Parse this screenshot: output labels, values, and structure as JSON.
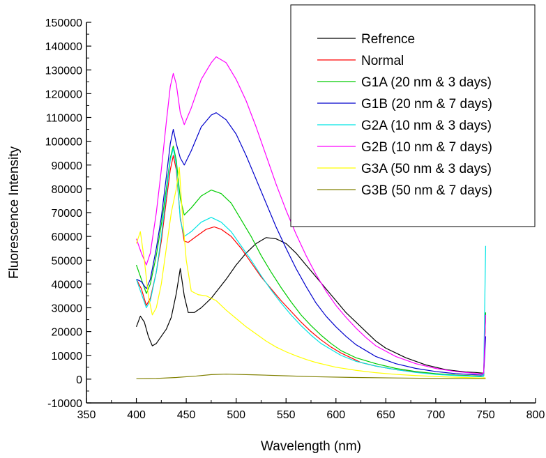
{
  "chart_data": {
    "type": "line",
    "xlabel": "Wavelength (nm)",
    "ylabel": "Fluorescence Intensity",
    "xlim": [
      350,
      800
    ],
    "ylim": [
      -10000,
      150000
    ],
    "x_ticks": [
      350,
      400,
      450,
      500,
      550,
      600,
      650,
      700,
      750,
      800
    ],
    "y_ticks": [
      -10000,
      0,
      10000,
      20000,
      30000,
      40000,
      50000,
      60000,
      70000,
      80000,
      90000,
      100000,
      110000,
      120000,
      130000,
      140000,
      150000
    ],
    "legend_position": "top-right",
    "grid": false,
    "series": [
      {
        "name": "Refrence",
        "color": "#000000",
        "points": [
          [
            400,
            22000
          ],
          [
            404,
            26500
          ],
          [
            408,
            24000
          ],
          [
            412,
            18000
          ],
          [
            416,
            14000
          ],
          [
            420,
            15000
          ],
          [
            425,
            18000
          ],
          [
            430,
            21000
          ],
          [
            435,
            26000
          ],
          [
            440,
            36000
          ],
          [
            444,
            46500
          ],
          [
            448,
            35000
          ],
          [
            452,
            28000
          ],
          [
            458,
            28000
          ],
          [
            465,
            30000
          ],
          [
            475,
            34000
          ],
          [
            490,
            42000
          ],
          [
            500,
            48000
          ],
          [
            510,
            53000
          ],
          [
            520,
            57000
          ],
          [
            530,
            59500
          ],
          [
            540,
            59000
          ],
          [
            550,
            57000
          ],
          [
            560,
            53000
          ],
          [
            570,
            48000
          ],
          [
            580,
            43000
          ],
          [
            590,
            38000
          ],
          [
            600,
            33000
          ],
          [
            610,
            28000
          ],
          [
            620,
            24000
          ],
          [
            630,
            20000
          ],
          [
            640,
            16000
          ],
          [
            650,
            13000
          ],
          [
            660,
            11000
          ],
          [
            670,
            9000
          ],
          [
            680,
            7500
          ],
          [
            690,
            6000
          ],
          [
            700,
            5000
          ],
          [
            710,
            4000
          ],
          [
            720,
            3500
          ],
          [
            730,
            3000
          ],
          [
            740,
            2800
          ],
          [
            748,
            2500
          ],
          [
            750,
            28000
          ]
        ]
      },
      {
        "name": "Normal",
        "color": "#ff0000",
        "points": [
          [
            400,
            42000
          ],
          [
            405,
            38000
          ],
          [
            410,
            31000
          ],
          [
            414,
            34000
          ],
          [
            420,
            45000
          ],
          [
            425,
            58000
          ],
          [
            430,
            75000
          ],
          [
            434,
            88000
          ],
          [
            437,
            94000
          ],
          [
            440,
            88000
          ],
          [
            444,
            68000
          ],
          [
            448,
            58000
          ],
          [
            452,
            57500
          ],
          [
            460,
            60000
          ],
          [
            470,
            63000
          ],
          [
            478,
            64000
          ],
          [
            485,
            63000
          ],
          [
            495,
            60000
          ],
          [
            505,
            55000
          ],
          [
            515,
            49000
          ],
          [
            525,
            43000
          ],
          [
            535,
            38000
          ],
          [
            545,
            33000
          ],
          [
            555,
            28500
          ],
          [
            565,
            24000
          ],
          [
            575,
            20000
          ],
          [
            585,
            16500
          ],
          [
            595,
            13500
          ],
          [
            605,
            11000
          ],
          [
            615,
            9000
          ],
          [
            625,
            7000
          ],
          [
            640,
            5500
          ],
          [
            660,
            4000
          ],
          [
            680,
            3000
          ],
          [
            700,
            2200
          ],
          [
            720,
            1700
          ],
          [
            745,
            1200
          ],
          [
            748,
            1200
          ],
          [
            750,
            27000
          ]
        ]
      },
      {
        "name": "G1A (20 nm & 3 days)",
        "color": "#00cc00",
        "points": [
          [
            400,
            48000
          ],
          [
            405,
            42000
          ],
          [
            410,
            36000
          ],
          [
            414,
            40000
          ],
          [
            420,
            52000
          ],
          [
            425,
            65000
          ],
          [
            430,
            80000
          ],
          [
            434,
            93000
          ],
          [
            437,
            98000
          ],
          [
            440,
            92000
          ],
          [
            444,
            76000
          ],
          [
            448,
            69000
          ],
          [
            455,
            72000
          ],
          [
            465,
            77000
          ],
          [
            475,
            79500
          ],
          [
            485,
            78000
          ],
          [
            495,
            74000
          ],
          [
            505,
            67000
          ],
          [
            515,
            60000
          ],
          [
            525,
            52000
          ],
          [
            535,
            45000
          ],
          [
            545,
            38500
          ],
          [
            555,
            32500
          ],
          [
            565,
            27000
          ],
          [
            575,
            22500
          ],
          [
            585,
            18500
          ],
          [
            595,
            15000
          ],
          [
            605,
            12000
          ],
          [
            620,
            9000
          ],
          [
            640,
            6500
          ],
          [
            660,
            4500
          ],
          [
            680,
            3200
          ],
          [
            700,
            2300
          ],
          [
            720,
            1700
          ],
          [
            745,
            1200
          ],
          [
            748,
            1300
          ],
          [
            750,
            28000
          ]
        ]
      },
      {
        "name": "G1B (20 nm & 7 days)",
        "color": "#0000cc",
        "points": [
          [
            400,
            42000
          ],
          [
            405,
            41000
          ],
          [
            410,
            38000
          ],
          [
            414,
            42000
          ],
          [
            420,
            55000
          ],
          [
            425,
            68000
          ],
          [
            430,
            85000
          ],
          [
            434,
            99000
          ],
          [
            437,
            105000
          ],
          [
            440,
            99000
          ],
          [
            444,
            93000
          ],
          [
            448,
            90000
          ],
          [
            455,
            96000
          ],
          [
            465,
            106000
          ],
          [
            475,
            111000
          ],
          [
            480,
            112000
          ],
          [
            490,
            109000
          ],
          [
            500,
            103000
          ],
          [
            510,
            94000
          ],
          [
            520,
            84000
          ],
          [
            530,
            74000
          ],
          [
            540,
            64000
          ],
          [
            550,
            55000
          ],
          [
            560,
            46500
          ],
          [
            570,
            39000
          ],
          [
            580,
            32000
          ],
          [
            590,
            26500
          ],
          [
            600,
            22000
          ],
          [
            610,
            18000
          ],
          [
            620,
            14500
          ],
          [
            630,
            12000
          ],
          [
            640,
            9500
          ],
          [
            660,
            6500
          ],
          [
            680,
            4500
          ],
          [
            700,
            3200
          ],
          [
            720,
            2300
          ],
          [
            745,
            1700
          ],
          [
            748,
            1800
          ],
          [
            750,
            18000
          ]
        ]
      },
      {
        "name": "G2A (10 nm & 3 days)",
        "color": "#00e5e5",
        "points": [
          [
            400,
            42000
          ],
          [
            405,
            36000
          ],
          [
            410,
            30000
          ],
          [
            414,
            33000
          ],
          [
            420,
            45000
          ],
          [
            425,
            60000
          ],
          [
            430,
            78000
          ],
          [
            434,
            92000
          ],
          [
            437,
            97000
          ],
          [
            440,
            90000
          ],
          [
            444,
            67000
          ],
          [
            448,
            60000
          ],
          [
            455,
            62000
          ],
          [
            465,
            66000
          ],
          [
            475,
            68000
          ],
          [
            485,
            66000
          ],
          [
            495,
            62000
          ],
          [
            505,
            56000
          ],
          [
            515,
            50000
          ],
          [
            525,
            43500
          ],
          [
            535,
            37500
          ],
          [
            545,
            32000
          ],
          [
            555,
            27000
          ],
          [
            565,
            22500
          ],
          [
            575,
            18500
          ],
          [
            585,
            15000
          ],
          [
            595,
            12500
          ],
          [
            605,
            10000
          ],
          [
            620,
            7500
          ],
          [
            640,
            5500
          ],
          [
            660,
            4000
          ],
          [
            680,
            2800
          ],
          [
            700,
            2000
          ],
          [
            720,
            1500
          ],
          [
            745,
            1000
          ],
          [
            748,
            1200
          ],
          [
            750,
            56000
          ]
        ]
      },
      {
        "name": "G2B (10 nm & 7 days)",
        "color": "#ff00ff",
        "points": [
          [
            400,
            59000
          ],
          [
            405,
            53000
          ],
          [
            410,
            48000
          ],
          [
            414,
            53000
          ],
          [
            420,
            70000
          ],
          [
            425,
            88000
          ],
          [
            430,
            108000
          ],
          [
            434,
            123000
          ],
          [
            437,
            128500
          ],
          [
            440,
            124000
          ],
          [
            444,
            112000
          ],
          [
            448,
            107000
          ],
          [
            455,
            114000
          ],
          [
            465,
            126000
          ],
          [
            475,
            133000
          ],
          [
            480,
            135500
          ],
          [
            490,
            133000
          ],
          [
            500,
            126000
          ],
          [
            510,
            117000
          ],
          [
            520,
            106000
          ],
          [
            530,
            94000
          ],
          [
            540,
            82000
          ],
          [
            550,
            71000
          ],
          [
            560,
            61000
          ],
          [
            570,
            52000
          ],
          [
            580,
            44000
          ],
          [
            590,
            37000
          ],
          [
            600,
            31000
          ],
          [
            610,
            26000
          ],
          [
            620,
            21500
          ],
          [
            630,
            17500
          ],
          [
            640,
            14000
          ],
          [
            660,
            9500
          ],
          [
            680,
            6500
          ],
          [
            700,
            4500
          ],
          [
            720,
            3200
          ],
          [
            745,
            2200
          ],
          [
            748,
            2400
          ],
          [
            750,
            27000
          ]
        ]
      },
      {
        "name": "G3A (50 nm & 3 days)",
        "color": "#ffff00",
        "points": [
          [
            400,
            57000
          ],
          [
            404,
            62000
          ],
          [
            408,
            50000
          ],
          [
            412,
            35000
          ],
          [
            416,
            27000
          ],
          [
            420,
            30000
          ],
          [
            425,
            40000
          ],
          [
            430,
            55000
          ],
          [
            435,
            70000
          ],
          [
            440,
            80000
          ],
          [
            443,
            89000
          ],
          [
            446,
            70000
          ],
          [
            450,
            50000
          ],
          [
            455,
            37000
          ],
          [
            462,
            35500
          ],
          [
            470,
            35000
          ],
          [
            480,
            33000
          ],
          [
            490,
            29000
          ],
          [
            500,
            25500
          ],
          [
            510,
            22000
          ],
          [
            520,
            19000
          ],
          [
            530,
            16000
          ],
          [
            540,
            13500
          ],
          [
            550,
            11500
          ],
          [
            560,
            9800
          ],
          [
            570,
            8300
          ],
          [
            580,
            7000
          ],
          [
            600,
            5000
          ],
          [
            620,
            3700
          ],
          [
            640,
            2700
          ],
          [
            660,
            2000
          ],
          [
            680,
            1500
          ],
          [
            700,
            1100
          ],
          [
            720,
            800
          ],
          [
            745,
            500
          ],
          [
            748,
            600
          ],
          [
            750,
            500
          ]
        ]
      },
      {
        "name": "G3B (50 nm & 7 days)",
        "color": "#808000",
        "points": [
          [
            400,
            200
          ],
          [
            420,
            300
          ],
          [
            440,
            700
          ],
          [
            460,
            1300
          ],
          [
            475,
            1900
          ],
          [
            490,
            2100
          ],
          [
            500,
            2000
          ],
          [
            520,
            1800
          ],
          [
            550,
            1400
          ],
          [
            580,
            1000
          ],
          [
            620,
            700
          ],
          [
            660,
            500
          ],
          [
            700,
            300
          ],
          [
            750,
            200
          ]
        ]
      }
    ]
  }
}
